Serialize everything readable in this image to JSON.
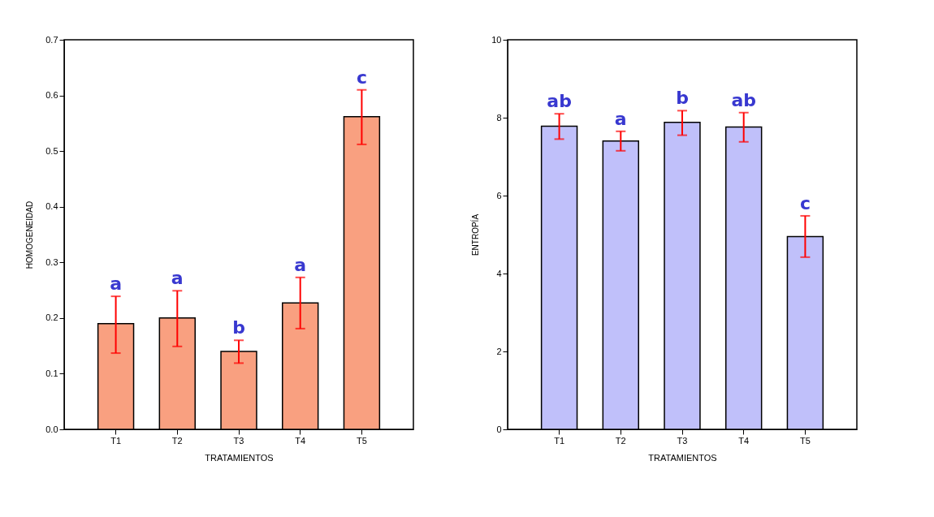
{
  "chart_data": [
    {
      "type": "bar",
      "xlabel": "TRATAMIENTOS",
      "ylabel": "HOMOGENEIDAD",
      "categories": [
        "T1",
        "T2",
        "T3",
        "T4",
        "T5"
      ],
      "series": [
        {
          "color": "#f9a080",
          "values": [
            0.19,
            0.2,
            0.14,
            0.227,
            0.562
          ],
          "errors": [
            [
              0.137,
              0.239
            ],
            [
              0.149,
              0.249
            ],
            [
              0.119,
              0.16
            ],
            [
              0.181,
              0.273
            ],
            [
              0.512,
              0.61
            ]
          ]
        }
      ],
      "ylim": [
        0,
        0.7
      ],
      "yticks": [
        {
          "value": 0,
          "label": "0.0"
        },
        {
          "value": 0.1,
          "label": "0.1"
        },
        {
          "value": 0.2,
          "label": "0.2"
        },
        {
          "value": 0.3,
          "label": "0.3"
        },
        {
          "value": 0.4,
          "label": "0.4"
        },
        {
          "value": 0.5,
          "label": "0.5"
        },
        {
          "value": 0.6,
          "label": "0.6"
        },
        {
          "value": 0.7,
          "label": "0.7"
        }
      ],
      "grid": false,
      "annotations": [
        {
          "text": "a",
          "x": "T1",
          "y": 0.239
        },
        {
          "text": "a",
          "x": "T2",
          "y": 0.249
        },
        {
          "text": "b",
          "x": "T3",
          "y": 0.16
        },
        {
          "text": "a",
          "x": "T4",
          "y": 0.273
        },
        {
          "text": "c",
          "x": "T5",
          "y": 0.61
        }
      ]
    },
    {
      "type": "bar",
      "xlabel": "TRATAMIENTOS",
      "ylabel": "ENTROPÍA",
      "categories": [
        "T1",
        "T2",
        "T3",
        "T4",
        "T5"
      ],
      "series": [
        {
          "color": "#c0c0fa",
          "values": [
            7.78,
            7.4,
            7.88,
            7.76,
            4.95
          ],
          "errors": [
            [
              7.45,
              8.1
            ],
            [
              7.15,
              7.65
            ],
            [
              7.55,
              8.18
            ],
            [
              7.38,
              8.13
            ],
            [
              4.42,
              5.48
            ]
          ]
        }
      ],
      "ylim": [
        0,
        10
      ],
      "yticks": [
        0,
        2,
        4,
        6,
        8,
        10
      ],
      "grid": false,
      "annotations": [
        {
          "text": "ab",
          "x": "T1",
          "y": 8.1
        },
        {
          "text": "a",
          "x": "T2",
          "y": 7.65
        },
        {
          "text": "b",
          "x": "T3",
          "y": 8.18
        },
        {
          "text": "ab",
          "x": "T4",
          "y": 8.13
        },
        {
          "text": "c",
          "x": "T5",
          "y": 5.48
        }
      ]
    }
  ]
}
